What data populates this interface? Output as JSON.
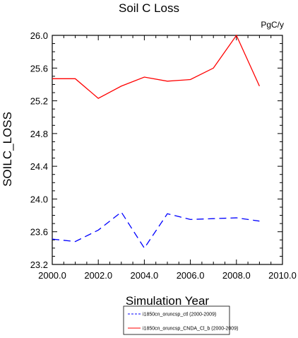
{
  "chart_data": {
    "type": "line",
    "title": "Soil C Loss",
    "units": "PgC/y",
    "xlabel": "Simulation Year",
    "ylabel": "SOILC_LOSS",
    "xlim": [
      2000,
      2010
    ],
    "ylim": [
      23.2,
      26.0
    ],
    "x_ticks": [
      "2000.0",
      "2002.0",
      "2004.0",
      "2006.0",
      "2008.0",
      "2010.0"
    ],
    "y_ticks": [
      "23.2",
      "23.6",
      "24.0",
      "24.4",
      "24.8",
      "25.2",
      "25.6",
      "26.0"
    ],
    "x": [
      2000,
      2001,
      2002,
      2003,
      2004,
      2005,
      2006,
      2007,
      2008,
      2009
    ],
    "series": [
      {
        "name": "i1850cn_oruncsp_ctl (2000-2009)",
        "color": "#0000ff",
        "dash": "dashed",
        "values": [
          23.51,
          23.48,
          23.62,
          23.84,
          23.4,
          23.82,
          23.75,
          23.76,
          23.77,
          23.73
        ]
      },
      {
        "name": "i1850cn_oruncsp_CNDA_Cl_b (2000-2009)",
        "color": "#ff0000",
        "dash": "solid",
        "values": [
          25.47,
          25.47,
          25.23,
          25.38,
          25.49,
          25.44,
          25.46,
          25.6,
          26.0,
          25.38
        ]
      }
    ],
    "grid": false,
    "legend_position": "bottom"
  }
}
